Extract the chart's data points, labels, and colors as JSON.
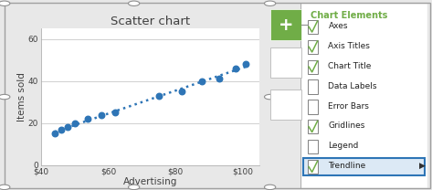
{
  "title": "Scatter chart",
  "xlabel": "Advertising",
  "ylabel": "Items sold",
  "scatter_x": [
    44,
    46,
    48,
    50,
    54,
    58,
    62,
    75,
    82,
    88,
    93,
    98,
    101
  ],
  "scatter_y": [
    15,
    17,
    18,
    20,
    22,
    24,
    25,
    33,
    35,
    40,
    41,
    46,
    48
  ],
  "scatter_color": "#2E75B6",
  "trendline_color": "#2E75B6",
  "xlim": [
    40,
    105
  ],
  "ylim": [
    0,
    65
  ],
  "xtick_labels": [
    "$40",
    "$60",
    "$80",
    "$100"
  ],
  "xtick_vals": [
    40,
    60,
    80,
    100
  ],
  "ytick_vals": [
    0,
    20,
    40,
    60
  ],
  "chart_elements_title": "Chart Elements",
  "chart_elements_items": [
    "Axes",
    "Axis Titles",
    "Chart Title",
    "Data Labels",
    "Error Bars",
    "Gridlines",
    "Legend",
    "Trendline"
  ],
  "checked_items": [
    "Axes",
    "Axis Titles",
    "Chart Title",
    "Gridlines",
    "Trendline"
  ],
  "chart_bg": "#ffffff",
  "outer_bg": "#e8e8e8",
  "grid_color": "#d0d0d0",
  "trendline_highlighted": "Trendline",
  "green_color": "#70AD47",
  "highlight_color": "#2E75B6",
  "highlight_fill": "#dce9f5"
}
